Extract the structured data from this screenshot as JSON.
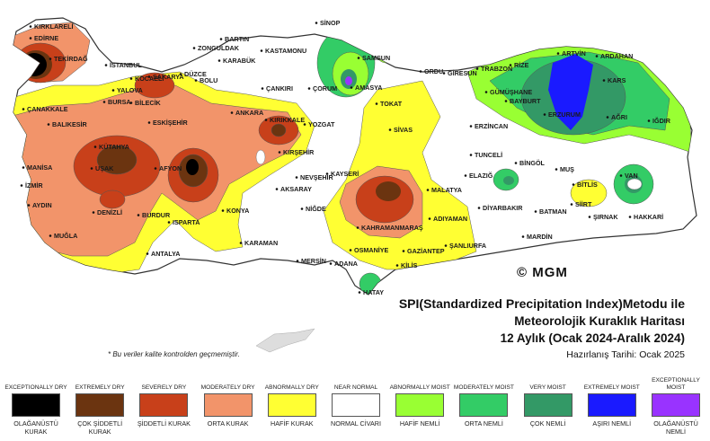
{
  "title_lines": {
    "line1": "SPI(Standardized Precipitation Index)Metodu ile",
    "line2": "Meteorolojik Kuraklık Haritası",
    "line3": "12 Aylık (Ocak 2024-Aralık 2024)",
    "line4": "Hazırlanış Tarihi: Ocak 2025"
  },
  "logo_text": "© MGM",
  "note": "* Bu veriler kalite kontrolden geçmemiştir.",
  "colors": {
    "exceptionally_dry": "#000000",
    "extremely_dry": "#6b3410",
    "severely_dry": "#c8401a",
    "moderately_dry": "#f2946a",
    "abnormally_dry": "#ffff33",
    "near_normal": "#ffffff",
    "abnormally_moist": "#99ff33",
    "moderately_moist": "#33cc66",
    "very_moist": "#339966",
    "extremely_moist": "#1a1aff",
    "exceptionally_moist": "#9933ff"
  },
  "legend": [
    {
      "en": "EXCEPTIONALLY DRY",
      "tr": "OLAĞANÜSTÜ KURAK",
      "color": "#000000"
    },
    {
      "en": "EXTREMELY DRY",
      "tr": "ÇOK ŞİDDETLİ KURAK",
      "color": "#6b3410"
    },
    {
      "en": "SEVERELY DRY",
      "tr": "ŞİDDETLİ KURAK",
      "color": "#c8401a"
    },
    {
      "en": "MODERATELY DRY",
      "tr": "ORTA KURAK",
      "color": "#f2946a"
    },
    {
      "en": "ABNORMALLY DRY",
      "tr": "HAFİF KURAK",
      "color": "#ffff33"
    },
    {
      "en": "NEAR NORMAL",
      "tr": "NORMAL CİVARI",
      "color": "#ffffff"
    },
    {
      "en": "ABNORMALLY MOIST",
      "tr": "HAFİF NEMLİ",
      "color": "#99ff33"
    },
    {
      "en": "MODERATELY MOIST",
      "tr": "ORTA NEMLİ",
      "color": "#33cc66"
    },
    {
      "en": "VERY MOIST",
      "tr": "ÇOK NEMLİ",
      "color": "#339966"
    },
    {
      "en": "EXTREMELY MOIST",
      "tr": "AŞIRI NEMLİ",
      "color": "#1a1aff"
    },
    {
      "en": "EXCEPTIONALLY MOIST",
      "tr": "OLAĞANÜSTÜ NEMLİ",
      "color": "#9933ff"
    }
  ],
  "cities": [
    "KIRKLARELİ",
    "EDİRNE",
    "TEKİRDAĞ",
    "İSTANBUL",
    "KOCAELİ",
    "SAKARYA",
    "YALOVA",
    "DÜZCE",
    "BOLU",
    "BARTIN",
    "ZONGULDAK",
    "KARABÜK",
    "KASTAMONU",
    "SİNOP",
    "SAMSUN",
    "AMASYA",
    "ÇORUM",
    "ÇANKIRI",
    "ORDU",
    "GİRESUN",
    "TRABZON",
    "RİZE",
    "ARTVİN",
    "ARDAHAN",
    "KARS",
    "IĞDIR",
    "AĞRI",
    "GÜMÜŞHANE",
    "BAYBURT",
    "ERZURUM",
    "ERZİNCAN",
    "TOKAT",
    "SİVAS",
    "YOZGAT",
    "KIRIKKALE",
    "ANKARA",
    "ESKİŞEHİR",
    "BİLECİK",
    "BURSA",
    "ÇANAKKALE",
    "BALIKESİR",
    "KÜTAHYA",
    "UŞAK",
    "MANİSA",
    "İZMİR",
    "AYDIN",
    "DENİZLİ",
    "MUĞLA",
    "AFYON",
    "BURDUR",
    "ISPARTA",
    "ANTALYA",
    "KONYA",
    "KARAMAN",
    "MERSİN",
    "ADANA",
    "OSMANİYE",
    "HATAY",
    "KİLİS",
    "GAZİANTEP",
    "ŞANLIURFA",
    "ADIYAMAN",
    "KAHRAMANMARAŞ",
    "MALATYA",
    "KAYSERİ",
    "NEVŞEHİR",
    "KIRŞEHİR",
    "AKSARAY",
    "NİĞDE",
    "TUNCELİ",
    "ELAZIĞ",
    "BİNGÖL",
    "MUŞ",
    "BİTLİS",
    "VAN",
    "HAKKARİ",
    "ŞIRNAK",
    "SİİRT",
    "BATMAN",
    "DİYARBAKIR",
    "MARDİN"
  ]
}
